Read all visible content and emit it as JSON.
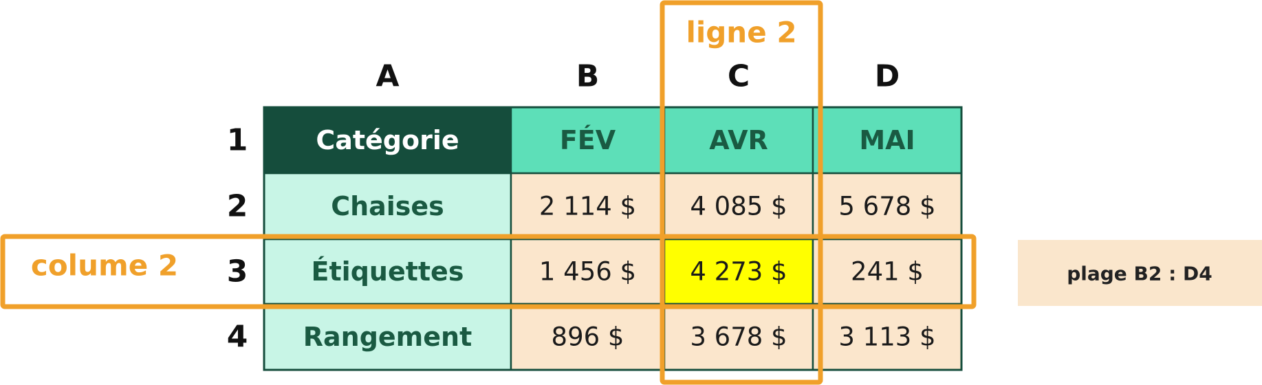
{
  "column_letters": [
    "A",
    "B",
    "C",
    "D"
  ],
  "row_numbers": [
    "1",
    "2",
    "3",
    "4"
  ],
  "table": {
    "rows": [
      [
        "Catégorie",
        "FÉV",
        "AVR",
        "MAI"
      ],
      [
        "Chaises",
        "2 114 $",
        "4 085 $",
        "5 678 $"
      ],
      [
        "Étiquettes",
        "1 456 $",
        "4 273 $",
        "241 $"
      ],
      [
        "Rangement",
        "896 $",
        "3 678 $",
        "3 113 $"
      ]
    ]
  },
  "annotations": {
    "column_label": "ligne 2",
    "row_label": "colume 2",
    "range_label": "plage B2 : D4"
  }
}
